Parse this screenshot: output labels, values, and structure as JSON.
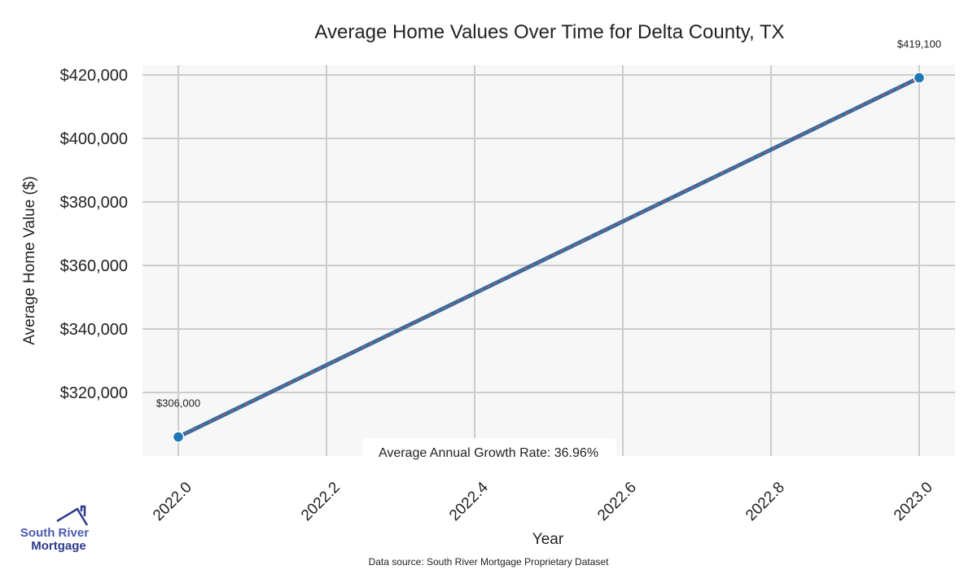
{
  "chart_data": {
    "type": "line",
    "title": "Average Home Values Over Time for Delta County, TX",
    "xlabel": "Year",
    "ylabel": "Average Home Value ($)",
    "x": [
      2022,
      2023
    ],
    "series": [
      {
        "name": "Average Home Value",
        "values": [
          306000,
          419100
        ]
      }
    ],
    "data_labels": [
      "$306,000",
      "$419,100"
    ],
    "xticks": [
      2022.0,
      2022.2,
      2022.4,
      2022.6,
      2022.8,
      2023.0
    ],
    "xtick_labels": [
      "2022.0",
      "2022.2",
      "2022.4",
      "2022.6",
      "2022.8",
      "2023.0"
    ],
    "yticks": [
      320000,
      340000,
      360000,
      380000,
      400000,
      420000
    ],
    "ytick_labels": [
      "$320,000",
      "$340,000",
      "$360,000",
      "$380,000",
      "$400,000",
      "$420,000"
    ],
    "xlim": [
      2021.95,
      2023.05
    ],
    "ylim": [
      298000,
      423000
    ],
    "grid": true,
    "annotation": "Average Annual Growth Rate: 36.96%",
    "source": "Data source: South River Mortgage Proprietary Dataset",
    "colors": {
      "line": "#2b6ea8",
      "dash": "#c0504d",
      "marker": "#1f77b4",
      "grid": "#cccccc",
      "plot_bg": "#f7f7f7",
      "logo": "#2d3a8c"
    }
  },
  "logo": {
    "line1": "South River",
    "line2": "Mortgage"
  }
}
